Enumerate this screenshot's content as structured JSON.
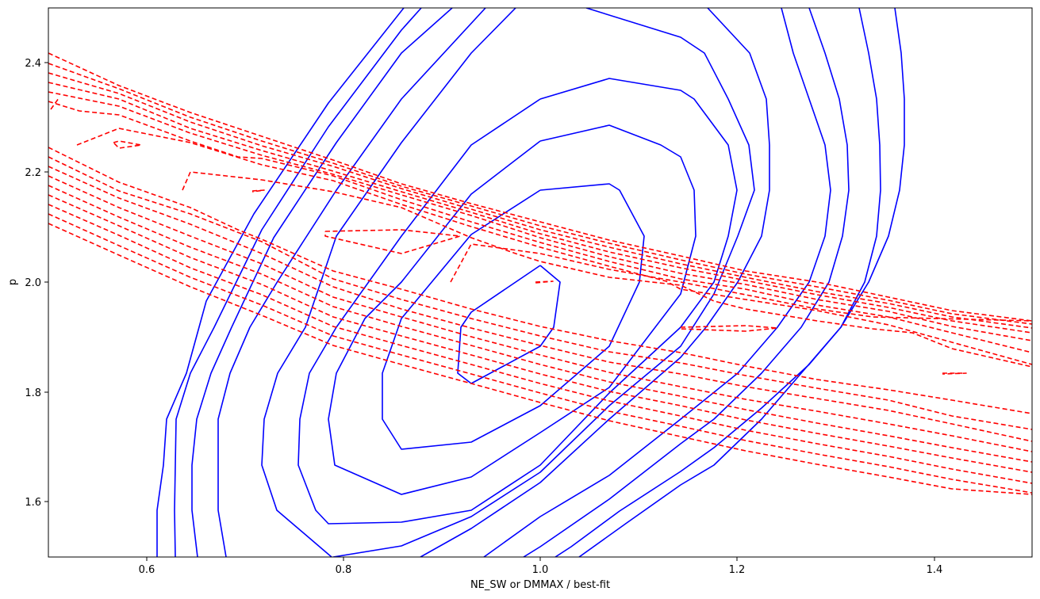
{
  "chart_data": {
    "type": "contour",
    "title": "",
    "xlabel": "NE_SW or DMMAX / best-fit",
    "ylabel": "p",
    "xlim": [
      0.5,
      1.5
    ],
    "ylim": [
      1.5,
      2.5
    ],
    "grid": false,
    "legend": null,
    "x_ticks": [
      0.6,
      0.8,
      1.0,
      1.2,
      1.4
    ],
    "x_tick_labels": [
      "0.6",
      "0.8",
      "1.0",
      "1.2",
      "1.4"
    ],
    "y_ticks": [
      1.6,
      1.8,
      2.0,
      2.2,
      2.4
    ],
    "y_tick_labels": [
      "1.6",
      "1.8",
      "2.0",
      "2.2",
      "2.4"
    ],
    "series": [
      {
        "name": "blue-solid-contours",
        "color": "#0000ff",
        "linestyle": "solid",
        "description": "Nested closed/open contours centered near (0.98, 1.93), elongated along a positive diagonal",
        "approx_center": [
          0.98,
          1.93
        ],
        "levels_count": 9
      },
      {
        "name": "red-dashed-contours",
        "color": "#ff0000",
        "linestyle": "dashed",
        "description": "Band of near-parallel dashed contours sloping downward from p~2.4 at x=0.5 to p~1.9 at x=1.5, with small closed islands",
        "levels_count": 9
      }
    ]
  },
  "axes": {
    "x_label": "NE_SW or DMMAX / best-fit",
    "y_label": "p",
    "x_tick_labels": [
      "0.6",
      "0.8",
      "1.0",
      "1.2",
      "1.4"
    ],
    "y_tick_labels": [
      "1.6",
      "1.8",
      "2.0",
      "2.2",
      "2.4"
    ]
  },
  "colors": {
    "blue": "#0000ff",
    "red": "#ff0000",
    "axis": "#000000"
  },
  "plot_paths": {
    "blue": [
      "681,335 706,356 698,413 681,437 594,484 577,471 581,413 594,394 681,335",
      "681,240 768,232 781,240 812,298 806,356 768,437 681,512 594,558 506,567 482,529 482,471 506,402 594,296 681,240",
      "681,178 768,158 833,183 858,198 875,240 877,298 858,371 768,489 681,546 594,602 506,624 422,587 414,529 424,471 460,402 506,356 594,245 681,178",
      "681,125 768,99 858,114 875,125 918,183 929,240 918,298 900,356 858,413 768,496 681,587 594,644 506,659 414,661 398,644 376,587 378,529 390,471 424,413 506,298 594,183 681,125",
      "650,10 594,67 506,180 424,298 385,413 350,471 333,529 330,587 349,644 418,703",
      "739,10 858,47 888,67 918,125 944,183 951,240 930,298 900,371 858,437 768,512 681,596 594,652 506,689 420,703",
      "612,10 506,125 424,240 350,355 315,413 290,471 275,529 275,587 275,644 285,703",
      "570,10 506,67 424,180 345,300 292,413 266,471 248,529 242,587 242,644 249,703",
      "531,10 506,38 414,160 330,290 270,413 240,471 222,529 221,587 220,644 221,703",
      "509,10 414,130 320,270 260,380 235,471 210,529 206,587 198,644 198,703",
      "892,10 945,67 966,125 970,183 970,240 960,298 930,356 890,413 858,451 768,529 681,609 594,667 530,703",
      "985,10 1000,67 1020,125 1040,183 1047,240 1040,298 1020,356 980,413 930,471 858,529 768,600 681,652 610,703",
      "1020,10 1040,67 1058,125 1068,183 1070,240 1062,298 1045,356 1010,413 960,471 900,529 858,560 768,630 681,690 660,703",
      "1083,10 1095,67 1105,125 1109,183 1110,240 1105,298 1090,356 1060,413 1010,471 960,529 900,587 858,612 790,660 730,703",
      "1128,10 1136,67 1140,125 1140,183 1134,240 1120,298 1095,356 1060,413 1020,460 960,515 900,565 858,595 781,645 720,690 700,703"
    ],
    "red": [
      "61,67 150,108 240,142 330,172 420,202 506,232 594,257 681,280 768,303 858,323 940,342 1030,356 1120,375 1200,392 1301,405",
      "61,80 150,112 240,148 330,178 420,206 506,235 594,260 681,285 768,307 858,328 940,346 1030,362 1120,379 1200,396 1301,409",
      "61,92 150,118 240,154 330,184 420,210 506,238 594,264 681,290 768,312 858,333 940,350 1030,368 1120,383 1200,400 1301,414",
      "61,104 150,125 240,162 330,190 420,216 506,242 594,268 681,295 768,318 858,338 940,354 1030,372 1120,388 1200,405 1301,420",
      "61,116 150,134 240,168 330,196 420,220 506,246 594,272 681,300 768,324 858,345 940,359 1030,378 1120,393 1200,412 1301,430",
      "61,128 100,140 150,145 240,178 300,198 330,200 420,222 506,252 594,280 681,306 768,330 858,352 940,365 1030,385 1120,400 1200,420 1301,445",
      "64,138 74,124",
      "97,183 150,162 240,180 330,208 420,228 506,258 594,286 681,312 768,336 840,355 858,365 940,378 1030,392 1120,410 1200,432 1301,460",
      "230,240 240,217 330,227 420,242 506,262 594,300 650,320 681,330 768,350 858,360 900,380 940,390 1030,405 1100,415 1150,420 1200,440 1301,463",
      "61,186 150,230 240,262 300,290 330,302 420,342 506,365 594,390 681,412 768,430 858,445 940,462 1030,479 1120,492 1200,505 1301,522",
      "61,198 150,241 240,270 330,305 420,352 506,378 594,402 681,424 768,444 858,458 940,474 1030,490 1120,505 1200,525 1301,542",
      "61,210 150,250 240,283 330,320 420,362 506,390 594,414 681,436 768,457 858,472 940,488 1030,503 1120,518 1200,535 1301,557",
      "61,222 150,262 240,298 330,333 420,375 506,400 594,425 681,448 768,470 858,488 940,504 1030,519 1120,535 1200,550 1301,570",
      "61,234 150,274 240,312 330,346 420,387 506,412 594,436 681,460 768,482 858,500 940,517 1030,534 1120,550 1200,565 1301,583",
      "61,246 150,285 240,325 330,359 420,400 506,424 594,448 681,472 768,494 858,512 940,530 1030,547 1120,563 1200,578 1301,596",
      "61,258 150,297 240,338 330,372 420,412 506,436 594,460 681,484 768,506 858,525 940,543 1030,560 1120,576 1200,592 1301,610",
      "61,270 150,310 240,350 330,385 420,424 506,448 594,472 681,496 768,519 858,538 940,556 1030,573 1120,589 1200,605 1301,622",
      "61,282 150,322 240,362 330,398 420,436 506,460 594,484 681,508 768,531 858,551 940,569 1030,586 1120,602 1200,617 1301,624",
      "143,180 150,178 178,183 150,187 143,180",
      "318,241 333,240 318,242",
      "410,292 506,290 580,298 506,320 410,298 410,292",
      "568,356 594,308 681,320 768,340 858,356 940,372 1030,390 1100,400 1301,405",
      "675,356 697,355 675,357",
      "858,413 940,411 980,414 940,418 858,415",
      "1188,471 1218,471 1188,472"
    ]
  }
}
